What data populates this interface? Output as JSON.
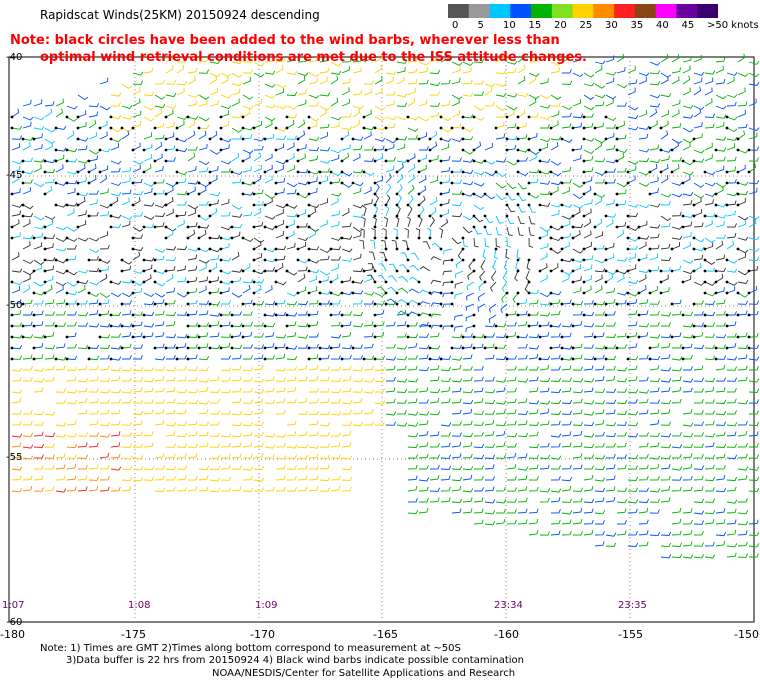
{
  "title": "Rapidscat Winds(25KM) 20150924 descending",
  "note_line1": "Note: black circles have been added to the wind barbs, wherever less than",
  "note_line2": "optimal wind retrieval conditions are met due to the ISS attitude changes.",
  "colorbar": {
    "labels": [
      "0",
      "5",
      "10",
      "15",
      "20",
      "25",
      "30",
      "35",
      "40",
      "45",
      ">50 knots"
    ],
    "colors": [
      "#555555",
      "#9a9a9a",
      "#00c8ff",
      "#0050ff",
      "#00b400",
      "#80e020",
      "#ffd200",
      "#ff8c00",
      "#ff2020",
      "#8b4513",
      "#ff00ff",
      "#6a00a0",
      "#3a0070"
    ]
  },
  "lat_labels": [
    "-40",
    "-45",
    "-50",
    "-55",
    "-60"
  ],
  "lon_labels": [
    "-180",
    "-175",
    "-170",
    "-165",
    "-160",
    "-155",
    "-150"
  ],
  "time_labels": [
    "1:07",
    "1:08",
    "1:09",
    "23:34",
    "23:35"
  ],
  "footer": {
    "line1": "Note: 1) Times are GMT 2)Times along bottom correspond to measurement at ~50S",
    "line2": "3)Data buffer is 22 hrs from 20150924 4) Black wind barbs indicate possible contamination",
    "line3": "NOAA/NESDIS/Center for Satellite Applications and Research"
  }
}
